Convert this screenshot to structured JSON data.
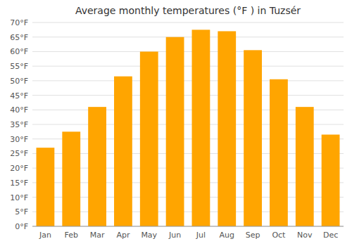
{
  "chart_data": {
    "type": "bar",
    "title": "Average monthly temperatures (°F ) in Tuzsér",
    "categories": [
      "Jan",
      "Feb",
      "Mar",
      "Apr",
      "May",
      "Jun",
      "Jul",
      "Aug",
      "Sep",
      "Oct",
      "Nov",
      "Dec"
    ],
    "values": [
      27,
      32.5,
      41,
      51.5,
      60,
      65,
      67.5,
      67,
      60.5,
      50.5,
      41,
      31.5
    ],
    "color": "#FFA500",
    "ylim": [
      0,
      70
    ],
    "yticks": [
      {
        "value": 0,
        "label": "0°F"
      },
      {
        "value": 5,
        "label": "5°F"
      },
      {
        "value": 10,
        "label": "10°F"
      },
      {
        "value": 15,
        "label": "15°F"
      },
      {
        "value": 20,
        "label": "20°F"
      },
      {
        "value": 25,
        "label": "25°F"
      },
      {
        "value": 30,
        "label": "30°F"
      },
      {
        "value": 35,
        "label": "35°F"
      },
      {
        "value": 40,
        "label": "40°F"
      },
      {
        "value": 45,
        "label": "45°F"
      },
      {
        "value": 50,
        "label": "50°F"
      },
      {
        "value": 55,
        "label": "55°F"
      },
      {
        "value": 60,
        "label": "60°F"
      },
      {
        "value": 65,
        "label": "65°F"
      },
      {
        "value": 70,
        "label": "70°F"
      }
    ],
    "grid": true
  }
}
